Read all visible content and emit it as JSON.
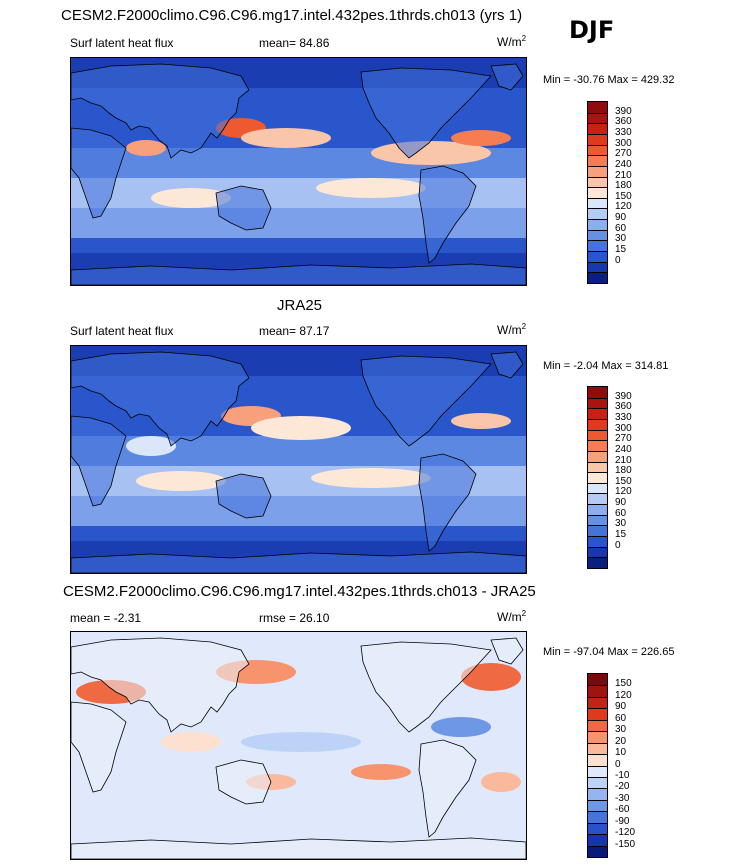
{
  "season": "DJF",
  "panels": [
    {
      "title": "CESM2.F2000climo.C96.C96.mg17.intel.432pes.1thrds.ch013 (yrs 1)",
      "left": "Surf latent heat flux",
      "middle": "mean=  84.86",
      "units": "W/m",
      "units_sup": "2",
      "minmax": "Min = -30.76 Max = 429.32",
      "colorbar": {
        "labels": [
          "390",
          "360",
          "330",
          "300",
          "270",
          "240",
          "210",
          "180",
          "150",
          "120",
          "90",
          "60",
          "30",
          "15",
          "0"
        ],
        "colors": [
          "#8e0c0c",
          "#a8150f",
          "#c42312",
          "#de3a1d",
          "#ee5a30",
          "#f67c52",
          "#f8a07c",
          "#fac6aa",
          "#fde8d8",
          "#dbe6fa",
          "#b4cbf4",
          "#8cadee",
          "#6690e4",
          "#4473da",
          "#2a56cc",
          "#1838ad",
          "#0b1f80"
        ]
      },
      "scheme": "flux"
    },
    {
      "title": "JRA25",
      "left": "Surf latent heat flux",
      "middle": "mean=  87.17",
      "units": "W/m",
      "units_sup": "2",
      "minmax": "Min =  -2.04 Max = 314.81",
      "colorbar": {
        "labels": [
          "390",
          "360",
          "330",
          "300",
          "270",
          "240",
          "210",
          "180",
          "150",
          "120",
          "90",
          "60",
          "30",
          "15",
          "0"
        ],
        "colors": [
          "#8e0c0c",
          "#a8150f",
          "#c42312",
          "#de3a1d",
          "#ee5a30",
          "#f67c52",
          "#f8a07c",
          "#fac6aa",
          "#fde8d8",
          "#dbe6fa",
          "#b4cbf4",
          "#8cadee",
          "#6690e4",
          "#4473da",
          "#2a56cc",
          "#1838ad",
          "#0b1f80"
        ]
      },
      "scheme": "flux"
    },
    {
      "title": "CESM2.F2000climo.C96.C96.mg17.intel.432pes.1thrds.ch013 - JRA25",
      "left": "mean =  -2.31",
      "middle": "rmse =  26.10",
      "units": "W/m",
      "units_sup": "2",
      "minmax": "Min = -97.04 Max = 226.65",
      "colorbar": {
        "labels": [
          "150",
          "120",
          "90",
          "60",
          "30",
          "20",
          "10",
          "0",
          "-10",
          "-20",
          "-30",
          "-60",
          "-90",
          "-120",
          "-150"
        ],
        "colors": [
          "#7a0a0a",
          "#a01410",
          "#c42312",
          "#de3a1d",
          "#ef6a42",
          "#f7946e",
          "#fab99c",
          "#fde0d0",
          "#dfe9fb",
          "#bcd2f6",
          "#94b5ef",
          "#6e97e6",
          "#4574da",
          "#2a52c8",
          "#1836a8",
          "#0a1a78"
        ]
      },
      "scheme": "diff"
    }
  ]
}
